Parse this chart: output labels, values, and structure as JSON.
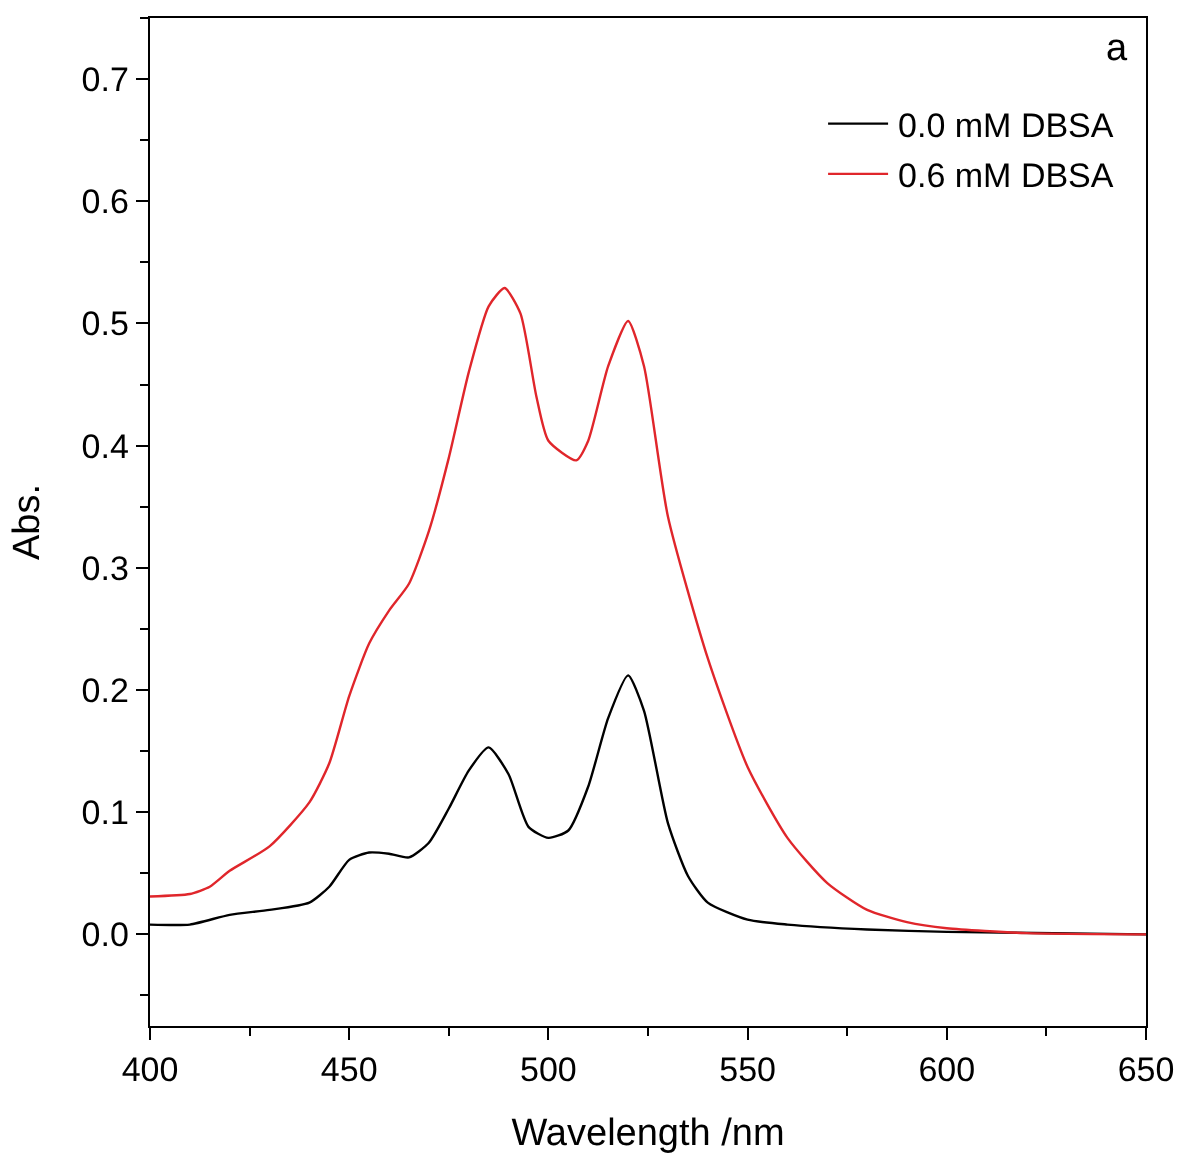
{
  "chart_data": {
    "type": "line",
    "xlabel": "Wavelength /nm",
    "ylabel": "Abs.",
    "annotations": [
      "a"
    ],
    "xlim": [
      400,
      650
    ],
    "xticks": [
      400,
      450,
      500,
      550,
      600,
      650
    ],
    "ylim": [
      -0.075,
      0.75
    ],
    "yticks": [
      {
        "value": 0,
        "label": "0.0"
      },
      0.1,
      0.2,
      0.3,
      0.4,
      0.5,
      0.6,
      0.7
    ],
    "legend": "top right",
    "marker": "none",
    "line_style": "solid",
    "series": [
      {
        "name": "0.0 mM DBSA",
        "color": "#000000",
        "x": [
          400,
          410,
          420,
          430,
          440,
          445,
          450,
          455,
          460,
          465,
          470,
          475,
          480,
          485,
          490,
          495,
          500,
          505,
          510,
          515,
          520,
          524,
          530,
          535,
          540,
          550,
          560,
          580,
          600,
          650
        ],
        "values": [
          0.008,
          0.008,
          0.016,
          0.02,
          0.026,
          0.039,
          0.061,
          0.067,
          0.066,
          0.063,
          0.075,
          0.103,
          0.134,
          0.153,
          0.131,
          0.088,
          0.079,
          0.085,
          0.121,
          0.177,
          0.212,
          0.183,
          0.091,
          0.048,
          0.026,
          0.012,
          0.008,
          0.004,
          0.002,
          0.0
        ]
      },
      {
        "name": "0.6 mM DBSA",
        "color": "#e0262b",
        "x": [
          400,
          410,
          415,
          420,
          430,
          440,
          445,
          450,
          455,
          460,
          465,
          470,
          475,
          480,
          485,
          489,
          493,
          497,
          500,
          507,
          510,
          515,
          520,
          524,
          530,
          540,
          550,
          560,
          570,
          580,
          590,
          600,
          620,
          650
        ],
        "values": [
          0.031,
          0.033,
          0.039,
          0.052,
          0.072,
          0.108,
          0.14,
          0.195,
          0.238,
          0.265,
          0.287,
          0.33,
          0.39,
          0.46,
          0.514,
          0.529,
          0.508,
          0.44,
          0.404,
          0.388,
          0.404,
          0.465,
          0.502,
          0.465,
          0.342,
          0.226,
          0.137,
          0.079,
          0.042,
          0.02,
          0.01,
          0.005,
          0.001,
          0.0
        ]
      }
    ]
  }
}
